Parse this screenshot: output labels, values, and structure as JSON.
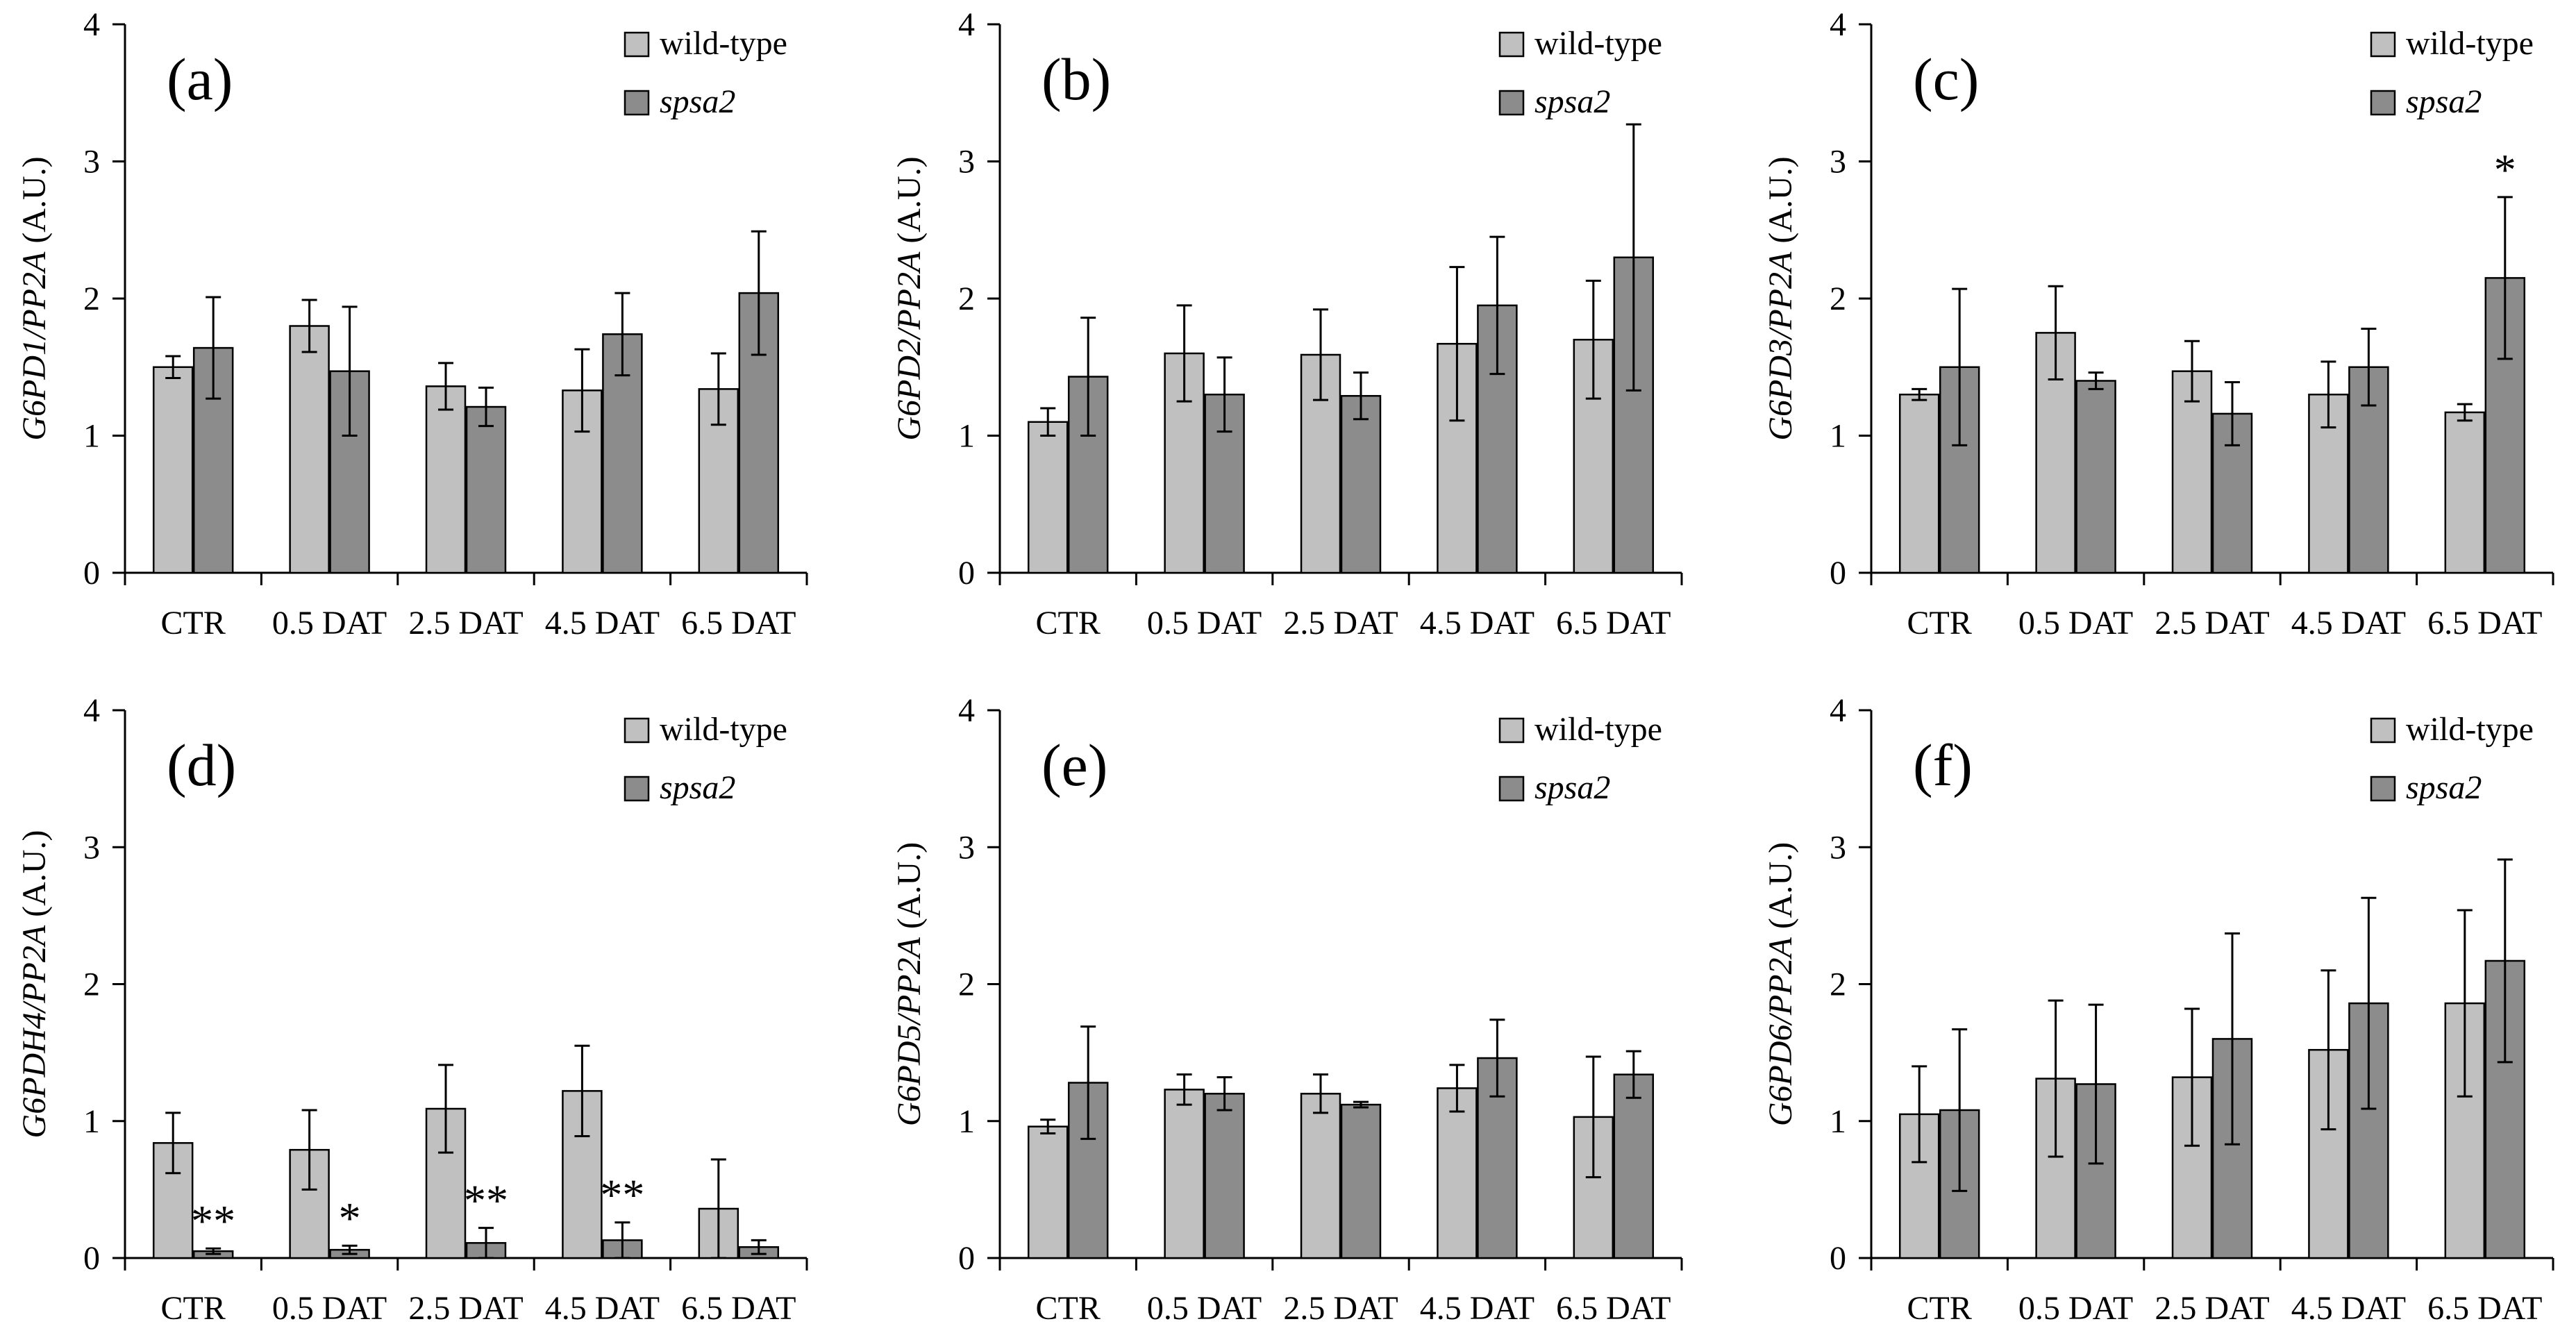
{
  "chart_data": [
    {
      "type": "bar",
      "panel": "(a)",
      "ylabel_gene": "G6PD1",
      "ylabel_ref": "/PP2A",
      "ylabel_unit": " (A.U.)",
      "categories": [
        "CTR",
        "0.5 DAT",
        "2.5 DAT",
        "4.5 DAT",
        "6.5 DAT"
      ],
      "ylim": [
        0,
        4
      ],
      "yticks": [
        "0",
        "1",
        "2",
        "3",
        "4"
      ],
      "legend": [
        "wild-type",
        "spsa2"
      ],
      "series": [
        {
          "name": "wild-type",
          "values": [
            1.5,
            1.8,
            1.36,
            1.33,
            1.34
          ],
          "errors": [
            0.08,
            0.19,
            0.17,
            0.3,
            0.26
          ]
        },
        {
          "name": "spsa2",
          "values": [
            1.64,
            1.47,
            1.21,
            1.74,
            2.04
          ],
          "errors": [
            0.37,
            0.47,
            0.14,
            0.3,
            0.45
          ]
        }
      ],
      "significance": []
    },
    {
      "type": "bar",
      "panel": "(b)",
      "ylabel_gene": "G6PD2",
      "ylabel_ref": "/PP2A",
      "ylabel_unit": " (A.U.)",
      "categories": [
        "CTR",
        "0.5 DAT",
        "2.5 DAT",
        "4.5 DAT",
        "6.5 DAT"
      ],
      "ylim": [
        0,
        4
      ],
      "yticks": [
        "0",
        "1",
        "2",
        "3",
        "4"
      ],
      "legend": [
        "wild-type",
        "spsa2"
      ],
      "series": [
        {
          "name": "wild-type",
          "values": [
            1.1,
            1.6,
            1.59,
            1.67,
            1.7
          ],
          "errors": [
            0.1,
            0.35,
            0.33,
            0.56,
            0.43
          ]
        },
        {
          "name": "spsa2",
          "values": [
            1.43,
            1.3,
            1.29,
            1.95,
            2.3
          ],
          "errors": [
            0.43,
            0.27,
            0.17,
            0.5,
            0.97
          ]
        }
      ],
      "significance": []
    },
    {
      "type": "bar",
      "panel": "(c)",
      "ylabel_gene": "G6PD3",
      "ylabel_ref": "/PP2A",
      "ylabel_unit": " (A.U.)",
      "categories": [
        "CTR",
        "0.5 DAT",
        "2.5 DAT",
        "4.5 DAT",
        "6.5 DAT"
      ],
      "ylim": [
        0,
        4
      ],
      "yticks": [
        "0",
        "1",
        "2",
        "3",
        "4"
      ],
      "legend": [
        "wild-type",
        "spsa2"
      ],
      "series": [
        {
          "name": "wild-type",
          "values": [
            1.3,
            1.75,
            1.47,
            1.3,
            1.17
          ],
          "errors": [
            0.04,
            0.34,
            0.22,
            0.24,
            0.06
          ]
        },
        {
          "name": "spsa2",
          "values": [
            1.5,
            1.4,
            1.16,
            1.5,
            2.15
          ],
          "errors": [
            0.57,
            0.06,
            0.23,
            0.28,
            0.59
          ]
        }
      ],
      "significance": [
        {
          "series": 1,
          "index": 4,
          "mark": "*"
        }
      ]
    },
    {
      "type": "bar",
      "panel": "(d)",
      "ylabel_gene": "G6PDH4",
      "ylabel_ref": "/PP2A",
      "ylabel_unit": " (A.U.)",
      "categories": [
        "CTR",
        "0.5 DAT",
        "2.5 DAT",
        "4.5 DAT",
        "6.5 DAT"
      ],
      "ylim": [
        0,
        4
      ],
      "yticks": [
        "0",
        "1",
        "2",
        "3",
        "4"
      ],
      "legend": [
        "wild-type",
        "spsa2"
      ],
      "series": [
        {
          "name": "wild-type",
          "values": [
            0.84,
            0.79,
            1.09,
            1.22,
            0.36
          ],
          "errors": [
            0.22,
            0.29,
            0.32,
            0.33,
            0.36
          ]
        },
        {
          "name": "spsa2",
          "values": [
            0.05,
            0.06,
            0.11,
            0.13,
            0.08
          ],
          "errors": [
            0.02,
            0.03,
            0.11,
            0.13,
            0.05
          ]
        }
      ],
      "significance": [
        {
          "series": 1,
          "index": 0,
          "mark": "**"
        },
        {
          "series": 1,
          "index": 1,
          "mark": "*"
        },
        {
          "series": 1,
          "index": 2,
          "mark": "**"
        },
        {
          "series": 1,
          "index": 3,
          "mark": "**"
        }
      ]
    },
    {
      "type": "bar",
      "panel": "(e)",
      "ylabel_gene": "G6PD5",
      "ylabel_ref": "/PP2A",
      "ylabel_unit": " (A.U.)",
      "categories": [
        "CTR",
        "0.5 DAT",
        "2.5 DAT",
        "4.5 DAT",
        "6.5 DAT"
      ],
      "ylim": [
        0,
        4
      ],
      "yticks": [
        "0",
        "1",
        "2",
        "3",
        "4"
      ],
      "legend": [
        "wild-type",
        "spsa2"
      ],
      "series": [
        {
          "name": "wild-type",
          "values": [
            0.96,
            1.23,
            1.2,
            1.24,
            1.03
          ],
          "errors": [
            0.05,
            0.11,
            0.14,
            0.17,
            0.44
          ]
        },
        {
          "name": "spsa2",
          "values": [
            1.28,
            1.2,
            1.12,
            1.46,
            1.34
          ],
          "errors": [
            0.41,
            0.12,
            0.02,
            0.28,
            0.17
          ]
        }
      ],
      "significance": []
    },
    {
      "type": "bar",
      "panel": "(f)",
      "ylabel_gene": "G6PD6",
      "ylabel_ref": "/PP2A",
      "ylabel_unit": " (A.U.)",
      "categories": [
        "CTR",
        "0.5 DAT",
        "2.5 DAT",
        "4.5 DAT",
        "6.5 DAT"
      ],
      "ylim": [
        0,
        4
      ],
      "yticks": [
        "0",
        "1",
        "2",
        "3",
        "4"
      ],
      "legend": [
        "wild-type",
        "spsa2"
      ],
      "series": [
        {
          "name": "wild-type",
          "values": [
            1.05,
            1.31,
            1.32,
            1.52,
            1.86
          ],
          "errors": [
            0.35,
            0.57,
            0.5,
            0.58,
            0.68
          ]
        },
        {
          "name": "spsa2",
          "values": [
            1.08,
            1.27,
            1.6,
            1.86,
            2.17
          ],
          "errors": [
            0.59,
            0.58,
            0.77,
            0.77,
            0.74
          ]
        }
      ],
      "significance": []
    }
  ]
}
